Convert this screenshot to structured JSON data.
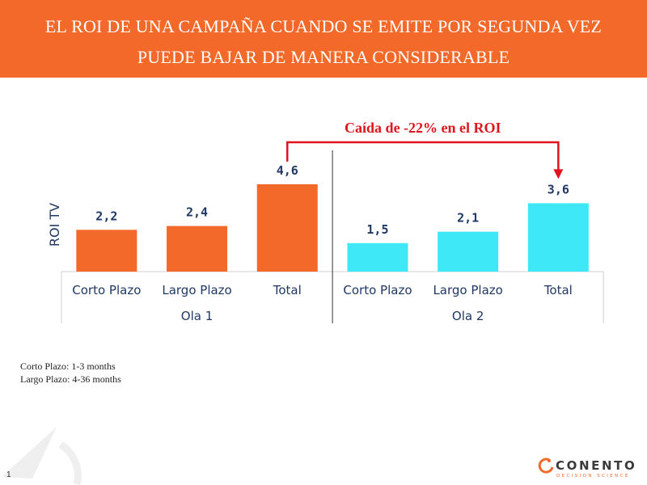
{
  "header": {
    "title_line1": "EL ROI DE UNA CAMPAÑA CUANDO SE EMITE POR SEGUNDA VEZ",
    "title_line2": "PUEDE BAJAR DE MANERA CONSIDERABLE"
  },
  "chart_data": {
    "type": "bar",
    "ylabel": "ROI TV",
    "groups": [
      "Ola 1",
      "Ola 2"
    ],
    "categories": [
      "Corto Plazo",
      "Largo Plazo",
      "Total",
      "Corto Plazo",
      "Largo Plazo",
      "Total"
    ],
    "group_index": [
      0,
      0,
      0,
      1,
      1,
      1
    ],
    "values": [
      2.2,
      2.4,
      4.6,
      1.5,
      2.1,
      3.6
    ],
    "value_labels": [
      "2,2",
      "2,4",
      "4,6",
      "1,5",
      "2,1",
      "3,6"
    ],
    "colors": {
      "Ola 1": "#f2692a",
      "Ola 2": "#3ee8f7"
    },
    "annotation": {
      "text": "Caída de -22% en el ROI",
      "from_index": 2,
      "to_index": 5,
      "color": "#e0141c"
    },
    "ylim": [
      0,
      5
    ],
    "grid": false
  },
  "notes": {
    "line1": "Corto Plazo: 1-3 months",
    "line2": "Largo Plazo: 4-36 months"
  },
  "footer": {
    "page_number": "1",
    "brand_name": "CONENTO",
    "brand_tagline": "DECISION SCIENCE"
  }
}
